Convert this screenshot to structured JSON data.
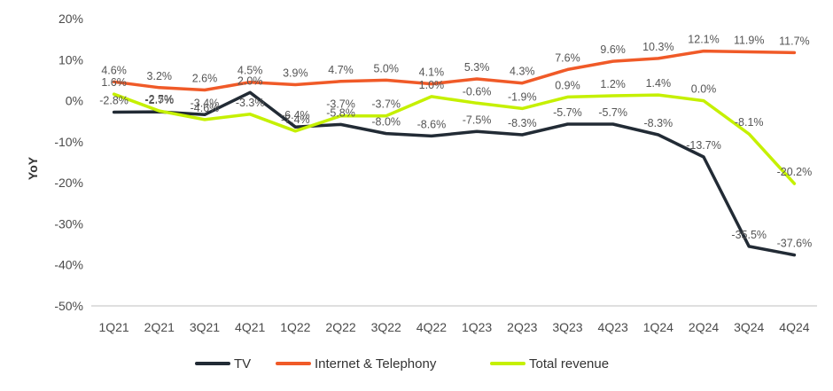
{
  "chart_data": {
    "type": "line",
    "categories": [
      "1Q21",
      "2Q21",
      "3Q21",
      "4Q21",
      "1Q22",
      "2Q22",
      "3Q22",
      "4Q22",
      "1Q23",
      "2Q23",
      "3Q23",
      "4Q23",
      "1Q24",
      "2Q24",
      "3Q24",
      "4Q24"
    ],
    "ylabel": "YoY",
    "ylim": [
      -50,
      20
    ],
    "yticks": [
      "20%",
      "10%",
      "0%",
      "-10%",
      "-20%",
      "-30%",
      "-40%",
      "-50%"
    ],
    "ytick_values": [
      20,
      10,
      0,
      -10,
      -20,
      -30,
      -40,
      -50
    ],
    "grid": false,
    "legend_position": "bottom",
    "series": [
      {
        "name": "TV",
        "color": "#222b35",
        "values": [
          -2.8,
          -2.7,
          -3.4,
          2.0,
          -6.4,
          -5.8,
          -8.0,
          -8.6,
          -7.5,
          -8.3,
          -5.7,
          -5.7,
          -8.3,
          -13.7,
          -35.5,
          -37.6
        ],
        "labels": [
          "-2.8%",
          "-2.7%",
          "-3.4%",
          "2.0%",
          "-6.4%",
          "-5.8%",
          "-8.0%",
          "-8.6%",
          "-7.5%",
          "-8.3%",
          "-5.7%",
          "-5.7%",
          "-8.3%",
          "-13.7%",
          "-35.5%",
          "-37.6%"
        ]
      },
      {
        "name": "Internet & Telephony",
        "color": "#f05a28",
        "values": [
          4.6,
          3.2,
          2.6,
          4.5,
          3.9,
          4.7,
          5.0,
          4.1,
          5.3,
          4.3,
          7.6,
          9.6,
          10.3,
          12.1,
          11.9,
          11.7
        ],
        "labels": [
          "4.6%",
          "3.2%",
          "2.6%",
          "4.5%",
          "3.9%",
          "4.7%",
          "5.0%",
          "4.1%",
          "5.3%",
          "4.3%",
          "7.6%",
          "9.6%",
          "10.3%",
          "12.1%",
          "11.9%",
          "11.7%"
        ]
      },
      {
        "name": "Total revenue",
        "color": "#c5f000",
        "values": [
          1.6,
          -2.5,
          -4.6,
          -3.3,
          -7.4,
          -3.7,
          -3.7,
          1.0,
          -0.6,
          -1.9,
          0.9,
          1.2,
          1.4,
          0.0,
          -8.1,
          -20.2
        ],
        "labels": [
          "1.6%",
          "-2.5%",
          "-4.6%",
          "-3.3%",
          "-7.4%",
          "-3.7%",
          "-3.7%",
          "1.0%",
          "-0.6%",
          "-1.9%",
          "0.9%",
          "1.2%",
          "1.4%",
          "0.0%",
          "-8.1%",
          "-20.2%"
        ]
      }
    ]
  }
}
